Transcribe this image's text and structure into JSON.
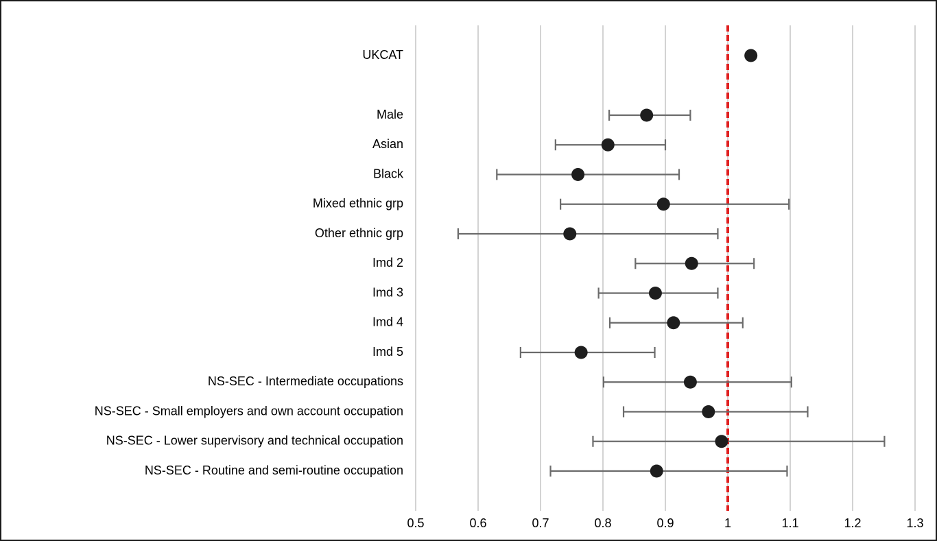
{
  "chart_data": {
    "type": "scatter",
    "title": "",
    "xlabel": "",
    "ylabel": "",
    "xlim": [
      0.5,
      1.3
    ],
    "x_ticks": [
      "0.5",
      "0.6",
      "0.7",
      "0.8",
      "0.9",
      "1",
      "1.1",
      "1.2",
      "1.3"
    ],
    "grid": "vertical",
    "reference_line": {
      "x": 1.0,
      "style": "dashed",
      "color": "#e02020"
    },
    "colors": {
      "point": "#1e1e1e",
      "error_bar": "#6b6b6b",
      "grid": "#d3d3d3"
    },
    "series": [
      {
        "points": [
          {
            "label": "UKCAT",
            "value": 1.037,
            "lower": null,
            "upper": null
          },
          {
            "label": "Male",
            "value": 0.87,
            "lower": 0.81,
            "upper": 0.94
          },
          {
            "label": "Asian",
            "value": 0.808,
            "lower": 0.724,
            "upper": 0.9
          },
          {
            "label": "Black",
            "value": 0.76,
            "lower": 0.63,
            "upper": 0.922
          },
          {
            "label": "Mixed ethnic grp",
            "value": 0.897,
            "lower": 0.732,
            "upper": 1.098
          },
          {
            "label": "Other ethnic grp",
            "value": 0.747,
            "lower": 0.568,
            "upper": 0.984
          },
          {
            "label": "Imd 2",
            "value": 0.942,
            "lower": 0.852,
            "upper": 1.042
          },
          {
            "label": "Imd 3",
            "value": 0.884,
            "lower": 0.793,
            "upper": 0.984
          },
          {
            "label": "Imd 4",
            "value": 0.913,
            "lower": 0.811,
            "upper": 1.024
          },
          {
            "label": "Imd 5",
            "value": 0.765,
            "lower": 0.668,
            "upper": 0.883
          },
          {
            "label": "NS-SEC - Intermediate occupations",
            "value": 0.94,
            "lower": 0.801,
            "upper": 1.102
          },
          {
            "label": "NS-SEC - Small employers and own account occupation",
            "value": 0.969,
            "lower": 0.833,
            "upper": 1.128
          },
          {
            "label": "NS-SEC - Lower supervisory and technical occupation",
            "value": 0.99,
            "lower": 0.784,
            "upper": 1.251
          },
          {
            "label": "NS-SEC - Routine and semi-routine occupation",
            "value": 0.886,
            "lower": 0.716,
            "upper": 1.095
          }
        ]
      }
    ]
  }
}
